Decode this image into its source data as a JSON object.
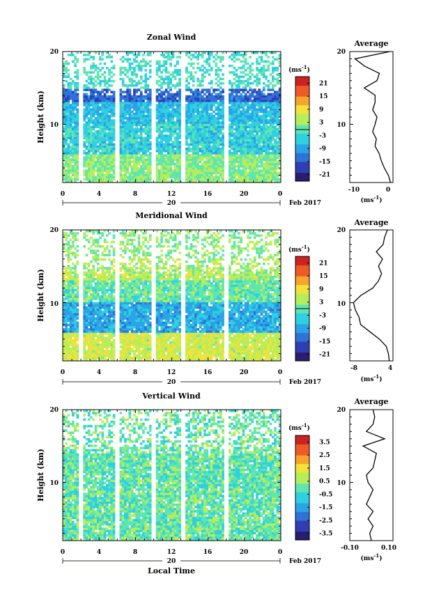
{
  "page": {
    "x_date": "20",
    "month_label": "Feb 2017",
    "xlabel_bottom": "Local Time",
    "cbar_unit_main": "(ms",
    "cbar_unit_sup": "-1",
    "cbar_unit_close": ")",
    "avg_unit_main": "(ms",
    "avg_unit_sup": "-1",
    "avg_unit_close": ")"
  },
  "chart_data": [
    {
      "type": "heatmap",
      "title": "Zonal Wind",
      "ylabel": "Height (km)",
      "xlabel": "",
      "x_ticks": [
        "0",
        "4",
        "8",
        "12",
        "16",
        "20",
        "0"
      ],
      "y_ticks": [
        "20",
        "10"
      ],
      "ylim": [
        2,
        20
      ],
      "xlim": [
        0,
        24
      ],
      "colorbar_ticks": [
        "21",
        "15",
        "9",
        "3",
        "-3",
        "-9",
        "-15",
        "-21"
      ],
      "colorbar_range": [
        -24,
        24
      ],
      "colors": [
        "#2a1c6e",
        "#2f3fb3",
        "#2f73d9",
        "#2aa4e6",
        "#2fd0e0",
        "#5fe6b0",
        "#b6ee5a",
        "#f2e23a",
        "#f6a52a",
        "#ee5a26",
        "#cc2222"
      ],
      "average": {
        "title": "Average",
        "x_ticks": [
          "-10",
          "0"
        ],
        "xlim": [
          -12,
          2
        ],
        "heights": [
          2,
          3,
          4,
          5,
          6,
          7,
          8,
          9,
          10,
          11,
          12,
          13,
          14,
          15,
          16,
          17,
          18,
          19,
          20
        ],
        "values": [
          1.2,
          0.5,
          -0.8,
          -1.8,
          -2.5,
          -3.8,
          -3.4,
          -4.6,
          -3.8,
          -3.2,
          -4.6,
          -3.8,
          -3.8,
          -7.3,
          -3.2,
          -2.4,
          -7.2,
          -10.3,
          1.0
        ]
      }
    },
    {
      "type": "heatmap",
      "title": "Meridional Wind",
      "ylabel": "Height (km)",
      "xlabel": "",
      "x_ticks": [
        "0",
        "4",
        "8",
        "12",
        "16",
        "20",
        "0"
      ],
      "y_ticks": [
        "20",
        "10"
      ],
      "ylim": [
        2,
        20
      ],
      "xlim": [
        0,
        24
      ],
      "colorbar_ticks": [
        "21",
        "15",
        "9",
        "3",
        "-3",
        "-9",
        "-15",
        "-21"
      ],
      "colorbar_range": [
        -24,
        24
      ],
      "colors": [
        "#2a1c6e",
        "#2f3fb3",
        "#2f73d9",
        "#2aa4e6",
        "#2fd0e0",
        "#5fe6b0",
        "#b6ee5a",
        "#f2e23a",
        "#f6a52a",
        "#ee5a26",
        "#cc2222"
      ],
      "average": {
        "title": "Average",
        "x_ticks": [
          "-8",
          "4"
        ],
        "xlim": [
          -9,
          5
        ],
        "heights": [
          2,
          3,
          4,
          5,
          6,
          7,
          8,
          9,
          10,
          11,
          12,
          13,
          14,
          15,
          16,
          17,
          18,
          19,
          20
        ],
        "values": [
          3.8,
          3.5,
          2.8,
          0.6,
          -2.5,
          -5.5,
          -6.0,
          -7.2,
          -7.8,
          -5.4,
          -1.6,
          0.3,
          1.3,
          0.3,
          1.6,
          -0.4,
          1.8,
          2.3,
          3.2
        ]
      }
    },
    {
      "type": "heatmap",
      "title": "Vertical Wind",
      "ylabel": "Height (km)",
      "xlabel": "Local Time",
      "x_ticks": [
        "0",
        "4",
        "8",
        "12",
        "16",
        "20",
        "0"
      ],
      "y_ticks": [
        "20",
        "10"
      ],
      "ylim": [
        2,
        20
      ],
      "xlim": [
        0,
        24
      ],
      "colorbar_ticks": [
        "3.5",
        "2.5",
        "1.5",
        "0.5",
        "-0.5",
        "-1.5",
        "-2.5",
        "-3.5"
      ],
      "colorbar_range": [
        -4,
        4
      ],
      "colors": [
        "#2a1c6e",
        "#2f3fb3",
        "#2f73d9",
        "#2aa4e6",
        "#2fd0e0",
        "#5fe6b0",
        "#b6ee5a",
        "#f2e23a",
        "#f6a52a",
        "#ee5a26",
        "#cc2222"
      ],
      "average": {
        "title": "Average",
        "x_ticks": [
          "-0.10",
          "0.10"
        ],
        "xlim": [
          -0.13,
          0.13
        ],
        "heights": [
          2,
          3,
          4,
          5,
          6,
          7,
          8,
          9,
          10,
          11,
          12,
          13,
          14,
          15,
          16,
          17,
          18,
          19,
          20
        ],
        "values": [
          0.0,
          -0.01,
          0.01,
          -0.02,
          0.01,
          -0.03,
          -0.01,
          0.01,
          -0.02,
          -0.03,
          0.01,
          0.02,
          0.03,
          -0.05,
          0.08,
          -0.03,
          0.01,
          0.02,
          0.01
        ]
      }
    }
  ]
}
